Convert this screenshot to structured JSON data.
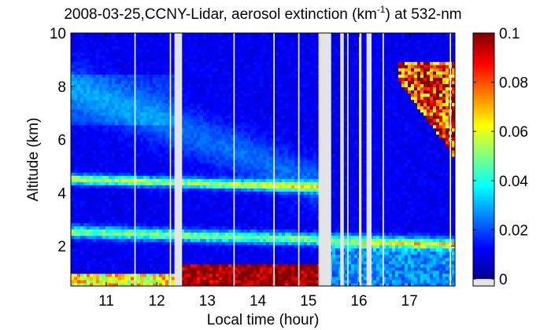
{
  "chart_data": {
    "type": "heatmap",
    "title": {
      "prefix": "2008-03-25,CCNY-Lidar, aerosol extinction (km",
      "superscript": "-1",
      "suffix": ") at 532-nm"
    },
    "xlabel": "Local time (hour)",
    "ylabel": "Altitude (km)",
    "xlim": [
      10.3,
      17.9
    ],
    "ylim": [
      0.5,
      10
    ],
    "x_ticks": [
      11,
      12,
      13,
      14,
      15,
      16,
      17
    ],
    "x_tick_labels": [
      "11",
      "12",
      "13",
      "14",
      "15",
      "16",
      "17"
    ],
    "y_ticks": [
      2,
      4,
      6,
      8,
      10
    ],
    "y_tick_labels": [
      "2",
      "4",
      "6",
      "8",
      "10"
    ],
    "colorbar": {
      "colormap": "jet",
      "range": [
        0,
        0.1
      ],
      "ticks": [
        0,
        0.02,
        0.04,
        0.06,
        0.08,
        0.1
      ],
      "tick_labels": [
        "0",
        "0.02",
        "0.04",
        "0.06",
        "0.08",
        "0.1"
      ],
      "no_data_color": "#e4e4e4"
    },
    "no_data_intervals_hour": [
      [
        12.35,
        12.5
      ],
      [
        15.2,
        15.45
      ],
      [
        15.63,
        15.7
      ],
      [
        16.0,
        16.05
      ],
      [
        16.15,
        16.25
      ]
    ],
    "white_gap_times_hour": [
      11.57,
      12.27,
      13.53,
      14.32,
      14.81,
      15.78,
      16.48,
      17.81
    ],
    "aerosol_layers": [
      {
        "name": "boundary layer",
        "start_hour": 10.3,
        "end_hour": 15.2,
        "altitude_km": [
          0.5,
          1.5
        ],
        "extinction_peak": 0.1
      },
      {
        "name": "elevated layer",
        "start_hour": 10.3,
        "end_hour": 15.2,
        "altitude_km": [
          4.4,
          4.65
        ],
        "extinction_peak": 0.045
      },
      {
        "name": "elevated layer",
        "start_hour": 10.3,
        "end_hour": 17.9,
        "altitude_km": [
          2.4,
          2.7
        ],
        "extinction_peak": 0.04
      },
      {
        "name": "cloud",
        "start_hour": 16.6,
        "end_hour": 17.9,
        "altitude_km": [
          5.3,
          8.8
        ],
        "extinction_peak": 0.1
      }
    ]
  }
}
